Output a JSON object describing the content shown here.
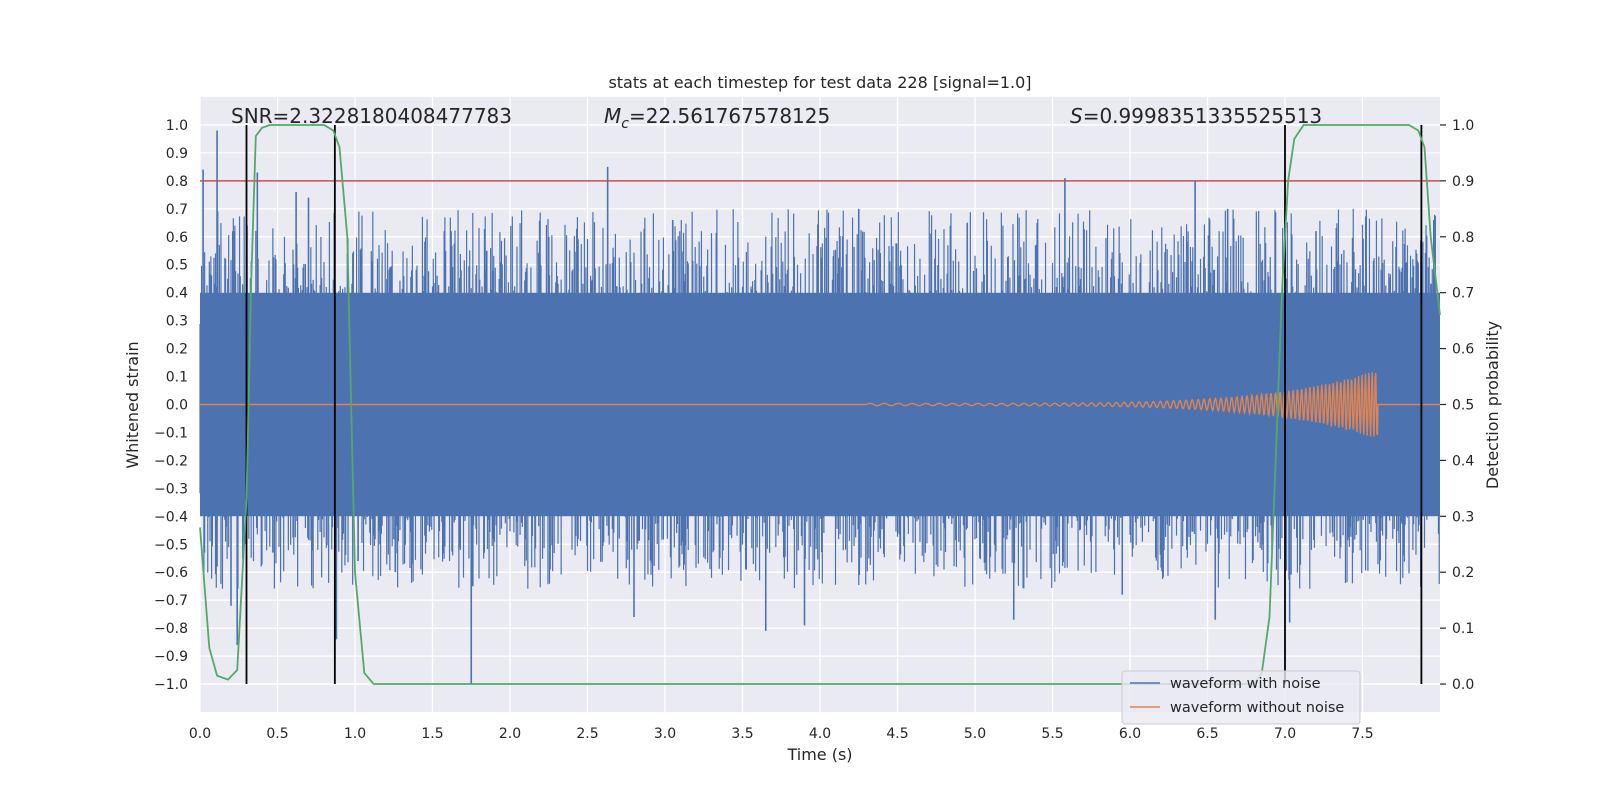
{
  "chart_data": {
    "type": "line",
    "title": "stats at each timestep for test data 228 [signal=1.0]",
    "xlabel": "Time (s)",
    "ylabel": "Whitened strain",
    "y2label": "Detection probability",
    "xlim": [
      0.0,
      8.0
    ],
    "ylim": [
      -1.1,
      1.1
    ],
    "y2lim": [
      -0.05,
      1.05
    ],
    "xticks": [
      0.0,
      0.5,
      1.0,
      1.5,
      2.0,
      2.5,
      3.0,
      3.5,
      4.0,
      4.5,
      5.0,
      5.5,
      6.0,
      6.5,
      7.0,
      7.5
    ],
    "yticks": [
      -1.0,
      -0.9,
      -0.8,
      -0.7,
      -0.6,
      -0.5,
      -0.4,
      -0.3,
      -0.2,
      -0.1,
      0.0,
      0.1,
      0.2,
      0.3,
      0.4,
      0.5,
      0.6,
      0.7,
      0.8,
      0.9,
      1.0
    ],
    "y2ticks": [
      0.0,
      0.1,
      0.2,
      0.3,
      0.4,
      0.5,
      0.6,
      0.7,
      0.8,
      0.9,
      1.0
    ],
    "grid": true,
    "annotations": {
      "snr": "SNR=2.3228180408477783",
      "mc_symbol": "M",
      "mc_sub": "c",
      "mc_value": "=22.561767578125",
      "s_symbol": "S",
      "s_value": "=0.9998351335525513"
    },
    "threshold_line": {
      "name": "threshold",
      "axis": "right",
      "value": 0.9,
      "color": "#c44e52"
    },
    "vertical_markers": [
      0.3,
      0.87,
      7.0,
      7.88
    ],
    "noise_series": {
      "name": "waveform with noise",
      "color": "#4c72b0",
      "band": 0.4,
      "peaks": [
        {
          "t": 0.02,
          "y": 0.84
        },
        {
          "t": 0.11,
          "y": -0.58
        },
        {
          "t": 0.18,
          "y": 0.45
        },
        {
          "t": 0.2,
          "y": -0.72
        },
        {
          "t": 0.22,
          "y": 0.62
        },
        {
          "t": 0.24,
          "y": -0.86
        },
        {
          "t": 0.11,
          "y": 0.98
        },
        {
          "t": 0.37,
          "y": 0.83
        },
        {
          "t": 0.47,
          "y": -0.53
        },
        {
          "t": 0.62,
          "y": 0.76
        },
        {
          "t": 0.7,
          "y": 0.74
        },
        {
          "t": 0.88,
          "y": -0.84
        },
        {
          "t": 1.02,
          "y": -0.56
        },
        {
          "t": 1.26,
          "y": -0.6
        },
        {
          "t": 1.62,
          "y": 0.62
        },
        {
          "t": 1.75,
          "y": -1.0
        },
        {
          "t": 1.76,
          "y": -0.65
        },
        {
          "t": 1.85,
          "y": 0.55
        },
        {
          "t": 2.25,
          "y": 0.6
        },
        {
          "t": 2.63,
          "y": 0.85
        },
        {
          "t": 2.8,
          "y": -0.76
        },
        {
          "t": 3.05,
          "y": 0.66
        },
        {
          "t": 3.65,
          "y": -0.81
        },
        {
          "t": 3.9,
          "y": -0.79
        },
        {
          "t": 4.25,
          "y": 0.7
        },
        {
          "t": 4.95,
          "y": 0.65
        },
        {
          "t": 5.25,
          "y": -0.77
        },
        {
          "t": 5.58,
          "y": 0.81
        },
        {
          "t": 5.95,
          "y": -0.68
        },
        {
          "t": 6.42,
          "y": 0.8
        },
        {
          "t": 6.55,
          "y": -0.77
        },
        {
          "t": 6.63,
          "y": 0.7
        },
        {
          "t": 7.03,
          "y": -0.78
        },
        {
          "t": 7.2,
          "y": 0.62
        },
        {
          "t": 7.96,
          "y": 0.66
        }
      ]
    },
    "signal_series": {
      "name": "waveform without noise",
      "color": "#dd8452",
      "start": 4.3,
      "end": 7.6,
      "peak_amplitude": 0.12
    },
    "probability_series": {
      "name": "Detection probability",
      "color": "#55a868",
      "x": [
        0.0,
        0.06,
        0.11,
        0.18,
        0.24,
        0.3,
        0.33,
        0.36,
        0.4,
        0.45,
        0.8,
        0.86,
        0.9,
        0.95,
        1.0,
        1.06,
        1.12,
        6.8,
        6.85,
        6.9,
        6.94,
        6.98,
        7.02,
        7.06,
        7.12,
        7.18,
        7.8,
        7.86,
        7.9,
        7.94,
        8.0
      ],
      "y": [
        0.28,
        0.065,
        0.015,
        0.008,
        0.025,
        0.33,
        0.72,
        0.98,
        0.995,
        1.0,
        1.0,
        0.99,
        0.96,
        0.8,
        0.2,
        0.02,
        0.0,
        0.0,
        0.02,
        0.12,
        0.4,
        0.7,
        0.9,
        0.975,
        1.0,
        1.0,
        1.0,
        0.99,
        0.96,
        0.8,
        0.66
      ]
    },
    "legend": {
      "placement": "lower-right",
      "entries": [
        {
          "label": "waveform with noise",
          "color": "#4c72b0"
        },
        {
          "label": "waveform without noise",
          "color": "#dd8452"
        }
      ]
    }
  }
}
